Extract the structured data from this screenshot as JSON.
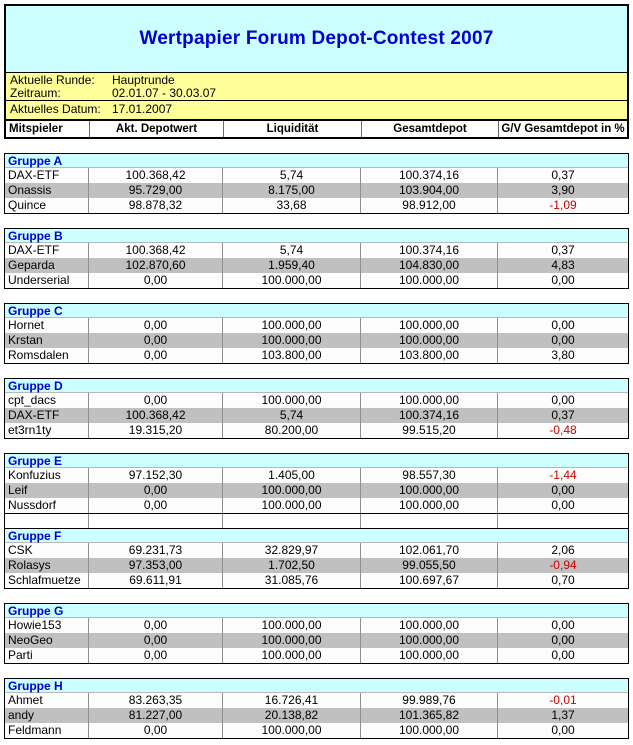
{
  "title": "Wertpapier Forum Depot-Contest 2007",
  "info": {
    "aktuelle_runde_label": "Aktuelle Runde:",
    "aktuelle_runde_value": "Hauptrunde",
    "zeitraum_label": "Zeitraum:",
    "zeitraum_value": "02.01.07 - 30.03.07",
    "aktuelles_datum_label": "Aktuelles Datum:",
    "aktuelles_datum_value": "17.01.2007"
  },
  "columns": [
    "Mitspieler",
    "Akt. Depotwert",
    "Liquidität",
    "Gesamtdepot",
    "G/V Gesamtdepot in %"
  ],
  "groups": [
    {
      "name": "Gruppe A",
      "rows": [
        {
          "player": "DAX-ETF",
          "depotwert": "100.368,42",
          "liquiditaet": "5,74",
          "gesamtdepot": "100.374,16",
          "gv": "0,37",
          "gv_negative": false
        },
        {
          "player": "Onassis",
          "depotwert": "95.729,00",
          "liquiditaet": "8.175,00",
          "gesamtdepot": "103.904,00",
          "gv": "3,90",
          "gv_negative": false
        },
        {
          "player": "Quince",
          "depotwert": "98.878,32",
          "liquiditaet": "33,68",
          "gesamtdepot": "98.912,00",
          "gv": "-1,09",
          "gv_negative": true
        }
      ]
    },
    {
      "name": "Gruppe B",
      "rows": [
        {
          "player": "DAX-ETF",
          "depotwert": "100.368,42",
          "liquiditaet": "5,74",
          "gesamtdepot": "100.374,16",
          "gv": "0,37",
          "gv_negative": false
        },
        {
          "player": "Geparda",
          "depotwert": "102.870,60",
          "liquiditaet": "1.959,40",
          "gesamtdepot": "104.830,00",
          "gv": "4,83",
          "gv_negative": false
        },
        {
          "player": "Underserial",
          "depotwert": "0,00",
          "liquiditaet": "100.000,00",
          "gesamtdepot": "100.000,00",
          "gv": "0,00",
          "gv_negative": false
        }
      ]
    },
    {
      "name": "Gruppe C",
      "rows": [
        {
          "player": "Hornet",
          "depotwert": "0,00",
          "liquiditaet": "100.000,00",
          "gesamtdepot": "100.000,00",
          "gv": "0,00",
          "gv_negative": false
        },
        {
          "player": "Krstan",
          "depotwert": "0,00",
          "liquiditaet": "100.000,00",
          "gesamtdepot": "100.000,00",
          "gv": "0,00",
          "gv_negative": false
        },
        {
          "player": "Romsdalen",
          "depotwert": "0,00",
          "liquiditaet": "103.800,00",
          "gesamtdepot": "103.800,00",
          "gv": "3,80",
          "gv_negative": false
        }
      ]
    },
    {
      "name": "Gruppe D",
      "rows": [
        {
          "player": "cpt_dacs",
          "depotwert": "0,00",
          "liquiditaet": "100.000,00",
          "gesamtdepot": "100.000,00",
          "gv": "0,00",
          "gv_negative": false
        },
        {
          "player": "DAX-ETF",
          "depotwert": "100.368,42",
          "liquiditaet": "5,74",
          "gesamtdepot": "100.374,16",
          "gv": "0,37",
          "gv_negative": false
        },
        {
          "player": "et3rn1ty",
          "depotwert": "19.315,20",
          "liquiditaet": "80.200,00",
          "gesamtdepot": "99.515,20",
          "gv": "-0,48",
          "gv_negative": true
        }
      ]
    },
    {
      "name": "Gruppe E",
      "spacer_after": true,
      "rows": [
        {
          "player": "Konfuzius",
          "depotwert": "97.152,30",
          "liquiditaet": "1.405,00",
          "gesamtdepot": "98.557,30",
          "gv": "-1,44",
          "gv_negative": true
        },
        {
          "player": "Leif",
          "depotwert": "0,00",
          "liquiditaet": "100.000,00",
          "gesamtdepot": "100.000,00",
          "gv": "0,00",
          "gv_negative": false
        },
        {
          "player": "Nussdorf",
          "depotwert": "0,00",
          "liquiditaet": "100.000,00",
          "gesamtdepot": "100.000,00",
          "gv": "0,00",
          "gv_negative": false
        }
      ]
    },
    {
      "name": "Gruppe F",
      "rows": [
        {
          "player": "CSK",
          "depotwert": "69.231,73",
          "liquiditaet": "32.829,97",
          "gesamtdepot": "102.061,70",
          "gv": "2,06",
          "gv_negative": false
        },
        {
          "player": "Rolasys",
          "depotwert": "97.353,00",
          "liquiditaet": "1.702,50",
          "gesamtdepot": "99.055,50",
          "gv": "-0,94",
          "gv_negative": true
        },
        {
          "player": "Schlafmuetze",
          "depotwert": "69.611,91",
          "liquiditaet": "31.085,76",
          "gesamtdepot": "100.697,67",
          "gv": "0,70",
          "gv_negative": false
        }
      ]
    },
    {
      "name": "Gruppe G",
      "rows": [
        {
          "player": "Howie153",
          "depotwert": "0,00",
          "liquiditaet": "100.000,00",
          "gesamtdepot": "100.000,00",
          "gv": "0,00",
          "gv_negative": false
        },
        {
          "player": "NeoGeo",
          "depotwert": "0,00",
          "liquiditaet": "100.000,00",
          "gesamtdepot": "100.000,00",
          "gv": "0,00",
          "gv_negative": false
        },
        {
          "player": "Parti",
          "depotwert": "0,00",
          "liquiditaet": "100.000,00",
          "gesamtdepot": "100.000,00",
          "gv": "0,00",
          "gv_negative": false
        }
      ]
    },
    {
      "name": "Gruppe H",
      "rows": [
        {
          "player": "Ahmet",
          "depotwert": "83.263,35",
          "liquiditaet": "16.726,41",
          "gesamtdepot": "99.989,76",
          "gv": "-0,01",
          "gv_negative": true
        },
        {
          "player": "andy",
          "depotwert": "81.227,00",
          "liquiditaet": "20.138,82",
          "gesamtdepot": "101.365,82",
          "gv": "1,37",
          "gv_negative": false
        },
        {
          "player": "Feldmann",
          "depotwert": "0,00",
          "liquiditaet": "100.000,00",
          "gesamtdepot": "100.000,00",
          "gv": "0,00",
          "gv_negative": false
        }
      ]
    }
  ],
  "colors": {
    "band_bg": "#CCFFFF",
    "info_bg": "#FFFF99",
    "stripe_bg": "#C0C0C0",
    "title_text": "#0000CC",
    "group_text": "#0000CC",
    "negative_text": "#CC0000"
  }
}
